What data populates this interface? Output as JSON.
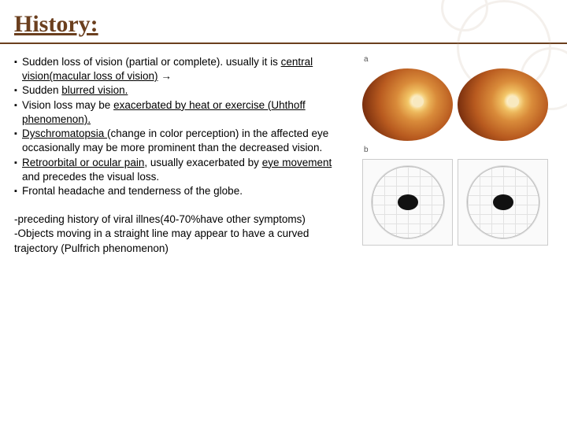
{
  "title": "History:",
  "bullets": [
    {
      "pre": "Sudden loss of vision (partial or complete). usually it is ",
      "u": "central vision(macular loss of vision)",
      "post": " →"
    },
    {
      "pre": "Sudden ",
      "u": "blurred vision.",
      "post": ""
    },
    {
      "pre": "Vision loss may be ",
      "u": "exacerbated by heat or exercise (Uhthoff phenomenon).",
      "post": ""
    },
    {
      "pre": "",
      "u": "Dyschromatopsia ",
      "post": "(change in color perception) in the affected eye occasionally may be more prominent than the decreased vision."
    },
    {
      "pre": "",
      "u": "Retroorbital or ocular pain",
      "post": ", usually exacerbated by ",
      "u2": "eye movement",
      "post2": " and precedes the visual loss."
    },
    {
      "pre": "Frontal headache and tenderness of the globe.",
      "u": "",
      "post": ""
    }
  ],
  "secondary": [
    "-preceding history of viral illnes(40-70%have other symptoms)",
    "-Objects moving in a straight line may appear to have a curved trajectory (Pulfrich phenomenon)"
  ],
  "labels": {
    "a": "a",
    "b": "b"
  },
  "colors": {
    "title": "#6b3f1e",
    "text": "#000000",
    "bg": "#ffffff"
  }
}
